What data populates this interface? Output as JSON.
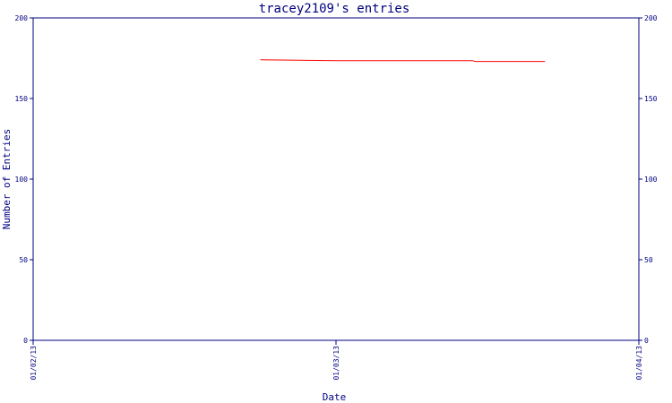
{
  "chart_data": {
    "type": "line",
    "title": "tracey2109's entries",
    "xlabel": "Date",
    "ylabel": "Number of Entries",
    "ylim": [
      0,
      200
    ],
    "yticks": [
      "0",
      "50",
      "100",
      "150",
      "200"
    ],
    "xticks": [
      "01/02/13",
      "01/03/13",
      "01/04/13"
    ],
    "x_range_days": [
      0,
      2
    ],
    "grid": false,
    "series": [
      {
        "color": "#ff0000",
        "x_days": [
          0.75,
          1.0,
          1.45,
          1.46,
          1.69
        ],
        "values": [
          174,
          173.5,
          173.5,
          173,
          173
        ]
      }
    ],
    "axis_color": "#000080"
  }
}
